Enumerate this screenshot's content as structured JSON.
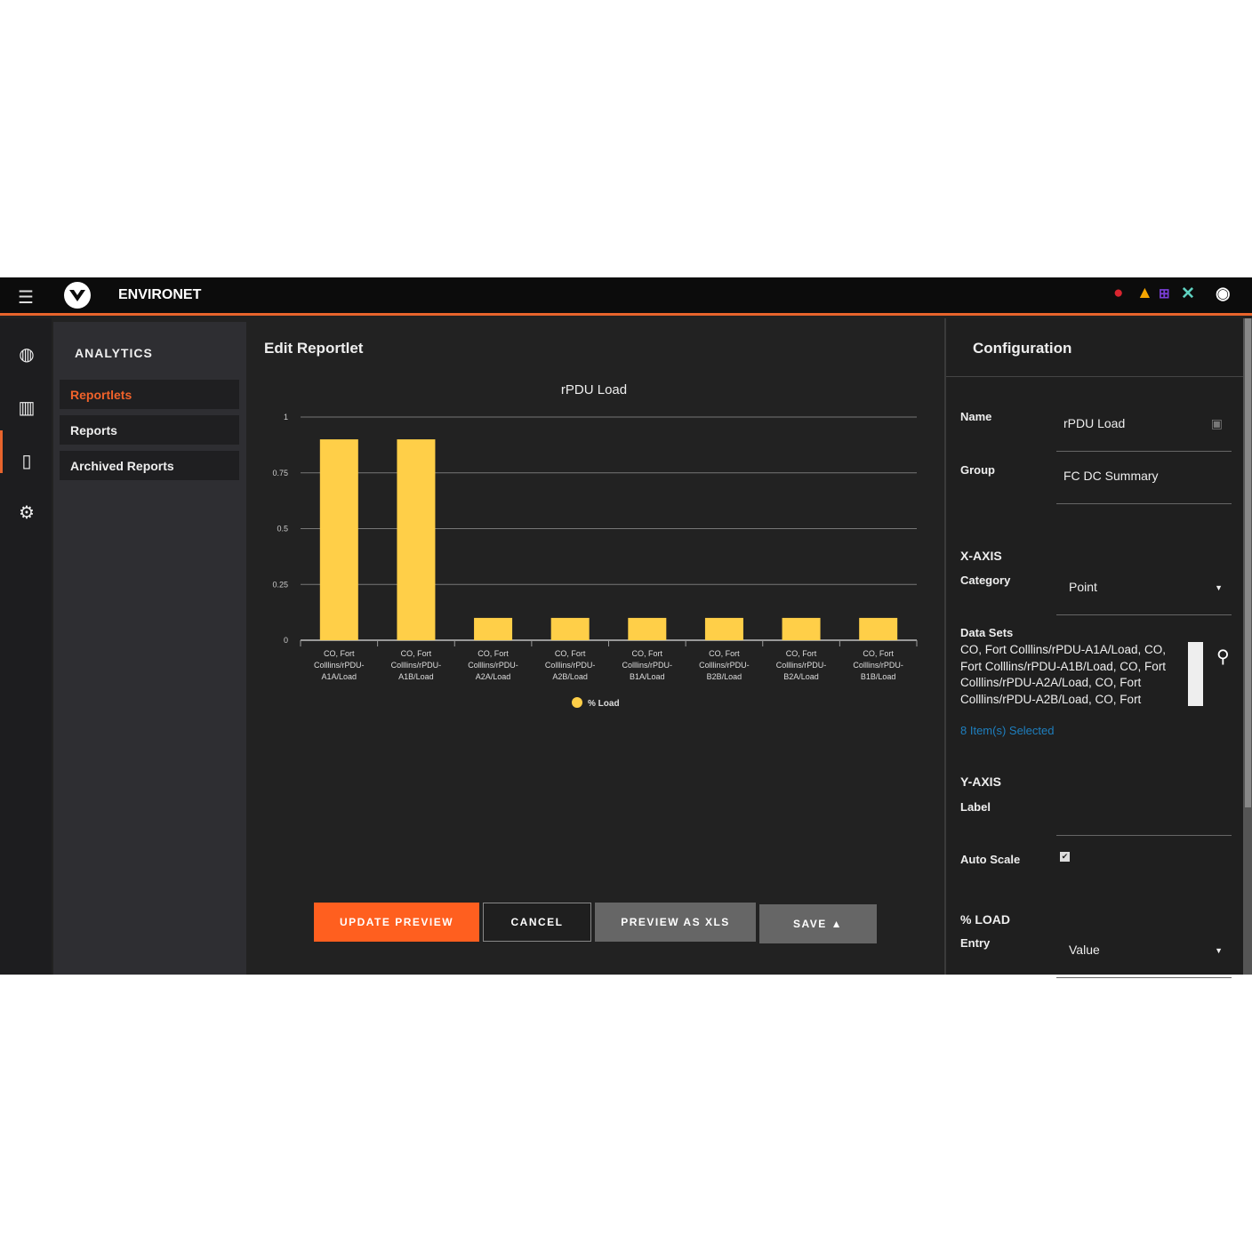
{
  "header": {
    "brand": "ENVIRONET",
    "icons": [
      "alarm-critical-icon",
      "warning-icon",
      "network-icon",
      "tools-icon",
      "user-icon"
    ],
    "colors": {
      "critical": "#d9252f",
      "warning": "#f5a500",
      "network": "#7a3fd8",
      "tools": "#5fd1c0",
      "accent": "#e8642c"
    }
  },
  "rail": {
    "icons": [
      "globe-icon",
      "analytics-icon",
      "server-icon",
      "gear-icon"
    ]
  },
  "sidebar": {
    "heading": "ANALYTICS",
    "items": [
      {
        "label": "Reportlets",
        "active": true
      },
      {
        "label": "Reports"
      },
      {
        "label": "Archived Reports"
      }
    ]
  },
  "main": {
    "title": "Edit Reportlet",
    "buttons": {
      "update": "UPDATE PREVIEW",
      "cancel": "CANCEL",
      "preview_xls": "PREVIEW AS XLS",
      "save": "SAVE"
    }
  },
  "chart_data": {
    "type": "bar",
    "title": "rPDU Load",
    "categories": [
      "CO, Fort Colllins/rPDU-A1A/Load",
      "CO, Fort Colllins/rPDU-A1B/Load",
      "CO, Fort Colllins/rPDU-A2A/Load",
      "CO, Fort Colllins/rPDU-A2B/Load",
      "CO, Fort Colllins/rPDU-B1A/Load",
      "CO, Fort Colllins/rPDU-B2B/Load",
      "CO, Fort Colllins/rPDU-B2A/Load",
      "CO, Fort Colllins/rPDU-B1B/Load"
    ],
    "category_lines": [
      [
        "CO, Fort",
        "Colllins/rPDU-",
        "A1A/Load"
      ],
      [
        "CO, Fort",
        "Colllins/rPDU-",
        "A1B/Load"
      ],
      [
        "CO, Fort",
        "Colllins/rPDU-",
        "A2A/Load"
      ],
      [
        "CO, Fort",
        "Colllins/rPDU-",
        "A2B/Load"
      ],
      [
        "CO, Fort",
        "Colllins/rPDU-",
        "B1A/Load"
      ],
      [
        "CO, Fort",
        "Colllins/rPDU-",
        "B2B/Load"
      ],
      [
        "CO, Fort",
        "Colllins/rPDU-",
        "B2A/Load"
      ],
      [
        "CO, Fort",
        "Colllins/rPDU-",
        "B1B/Load"
      ]
    ],
    "series": [
      {
        "name": "% Load",
        "values": [
          0.9,
          0.9,
          0.1,
          0.1,
          0.1,
          0.1,
          0.1,
          0.1
        ],
        "color": "#ffcf48"
      }
    ],
    "yticks": [
      "0",
      "0.25",
      "0.5",
      "0.75",
      "1"
    ],
    "ylim": [
      0,
      1
    ],
    "grid": true,
    "legend": "bottom"
  },
  "config": {
    "title": "Configuration",
    "name_label": "Name",
    "name_value": "rPDU Load",
    "group_label": "Group",
    "group_value": "FC DC Summary",
    "xaxis": "X-AXIS",
    "category_label": "Category",
    "category_value": "Point",
    "datasets_label": "Data Sets",
    "datasets_value": "CO, Fort Colllins/rPDU-A1A/Load, CO, Fort Colllins/rPDU-A1B/Load, CO, Fort Colllins/rPDU-A2A/Load, CO, Fort Colllins/rPDU-A2B/Load, CO, Fort",
    "selected": "8 Item(s) Selected",
    "yaxis": "Y-AXIS",
    "y_label": "Label",
    "autoscale_label": "Auto Scale",
    "autoscale": true,
    "load": "% LOAD",
    "entry_label": "Entry",
    "entry_value": "Value"
  }
}
